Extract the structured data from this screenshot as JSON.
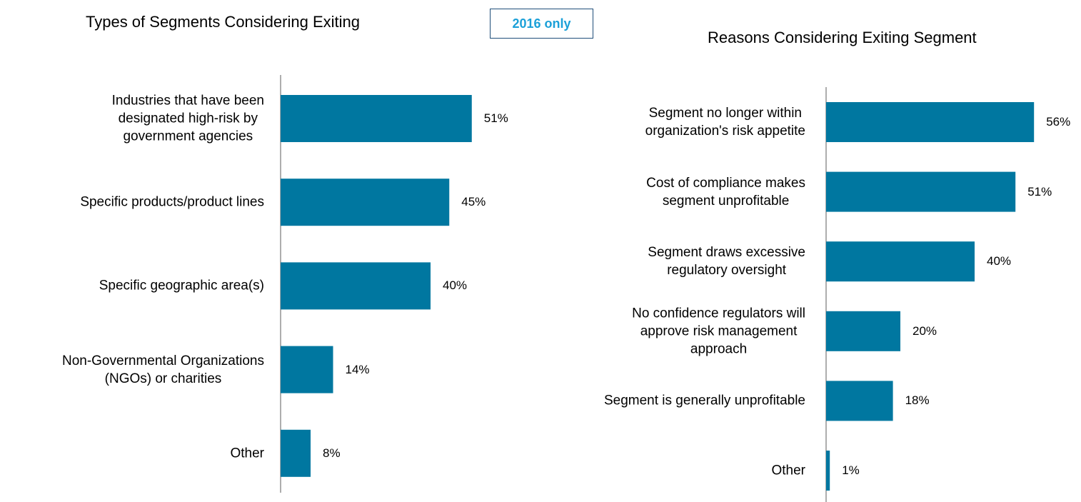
{
  "chart_data": [
    {
      "type": "bar",
      "orientation": "horizontal",
      "title": "Types of Segments Considering Exiting",
      "annotation": "2016 only",
      "color": "#0077a0",
      "categories": [
        "Industries that have been\ndesignated high-risk by\ngovernment agencies",
        "Specific products/product lines",
        "Specific geographic area(s)",
        "Non-Governmental Organizations\n(NGOs) or charities",
        "Other"
      ],
      "values": [
        51,
        45,
        40,
        14,
        8
      ],
      "value_labels": [
        "51%",
        "45%",
        "40%",
        "14%",
        "8%"
      ]
    },
    {
      "type": "bar",
      "orientation": "horizontal",
      "title": "Reasons Considering Exiting Segment",
      "color": "#0077a0",
      "categories": [
        "Segment no longer within\norganization's risk appetite",
        "Cost of compliance makes\nsegment unprofitable",
        "Segment draws excessive\nregulatory oversight",
        "No confidence regulators will\napprove risk management\napproach",
        "Segment is generally unprofitable",
        "Other"
      ],
      "values": [
        56,
        51,
        40,
        20,
        18,
        1
      ],
      "value_labels": [
        "56%",
        "51%",
        "40%",
        "20%",
        "18%",
        "1%"
      ]
    }
  ]
}
